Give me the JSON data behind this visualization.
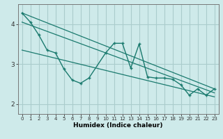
{
  "xlabel": "Humidex (Indice chaleur)",
  "bg_color": "#ceeaea",
  "grid_color": "#aacccc",
  "line_color": "#1a7a6e",
  "x_data": [
    0,
    1,
    2,
    3,
    4,
    5,
    6,
    7,
    8,
    9,
    10,
    11,
    12,
    13,
    14,
    15,
    16,
    17,
    18,
    19,
    20,
    21,
    22,
    23
  ],
  "y_main": [
    4.28,
    4.05,
    3.73,
    3.35,
    3.28,
    2.88,
    2.6,
    2.52,
    2.65,
    null,
    3.28,
    3.52,
    3.52,
    2.9,
    3.5,
    2.68,
    2.65,
    2.65,
    2.62,
    2.48,
    2.22,
    2.38,
    2.22,
    2.38
  ],
  "trend1_start": 4.28,
  "trend1_end": 2.38,
  "trend2_start": 4.05,
  "trend2_end": 2.28,
  "trend3_start": 3.35,
  "trend3_end": 2.18,
  "ylim": [
    1.75,
    4.5
  ],
  "xlim": [
    -0.5,
    23.5
  ],
  "yticks": [
    2,
    3,
    4
  ],
  "xticks": [
    0,
    1,
    2,
    3,
    4,
    5,
    6,
    7,
    8,
    9,
    10,
    11,
    12,
    13,
    14,
    15,
    16,
    17,
    18,
    19,
    20,
    21,
    22,
    23
  ]
}
